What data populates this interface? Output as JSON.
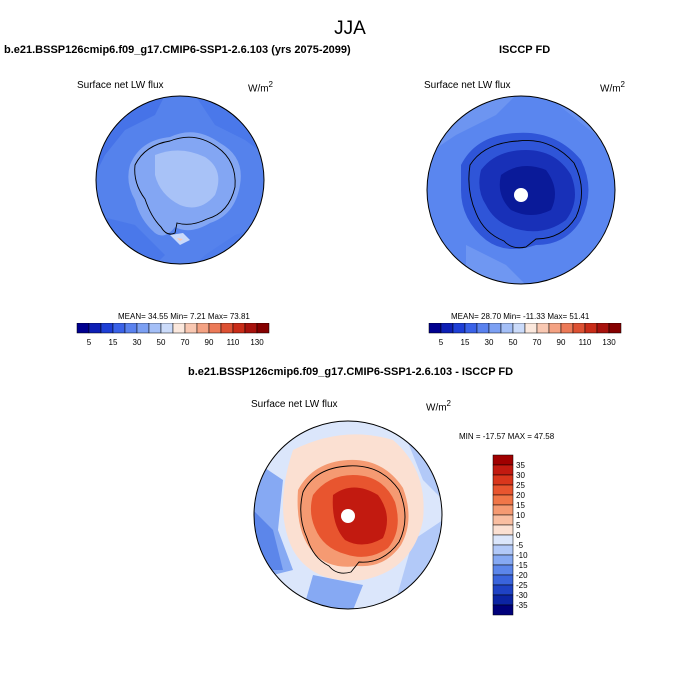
{
  "page_title": "JJA",
  "panels": {
    "model": {
      "title": "b.e21.BSSP126cmip6.f09_g17.CMIP6-SSP1-2.6.103 (yrs 2075-2099)",
      "variable": "Surface net LW flux",
      "units": "W/m",
      "units_exp": "2",
      "stats": "MEAN=  34.55  Min=   7.21  Max=  73.81"
    },
    "obs": {
      "title": "ISCCP FD",
      "variable": "Surface net LW flux",
      "units": "W/m",
      "units_exp": "2",
      "stats": "MEAN=  28.70  Min= -11.33  Max=  51.41"
    },
    "diff": {
      "title": "b.e21.BSSP126cmip6.f09_g17.CMIP6-SSP1-2.6.103 - ISCCP FD",
      "variable": "Surface net LW flux",
      "units": "W/m",
      "units_exp": "2",
      "stats": "MIN = -17.57 MAX =  47.58"
    }
  },
  "colorbars": {
    "abs_labels": [
      "5",
      "15",
      "30",
      "50",
      "70",
      "90",
      "110",
      "130"
    ],
    "abs_colors": [
      "#00008f",
      "#0d1fb5",
      "#1e3fd6",
      "#3a62e8",
      "#5a82ef",
      "#7ca0f3",
      "#a4bff7",
      "#cbdbfa",
      "#fbe8dd",
      "#f9c8b2",
      "#f4a283",
      "#ec7a58",
      "#dd5133",
      "#c92c18",
      "#a8120d",
      "#850000"
    ],
    "diff_labels": [
      "35",
      "30",
      "25",
      "20",
      "15",
      "10",
      "5",
      "0",
      "-5",
      "-10",
      "-15",
      "-20",
      "-25",
      "-30",
      "-35"
    ],
    "diff_colors": [
      "#a00000",
      "#c21a10",
      "#d9361c",
      "#e8552f",
      "#f07648",
      "#f59a72",
      "#f9bea1",
      "#fbe0d2",
      "#dbe6fb",
      "#b2c9f8",
      "#86a9f3",
      "#5c86ea",
      "#3a64dc",
      "#1f42c4",
      "#0c24a3",
      "#00007a"
    ]
  }
}
